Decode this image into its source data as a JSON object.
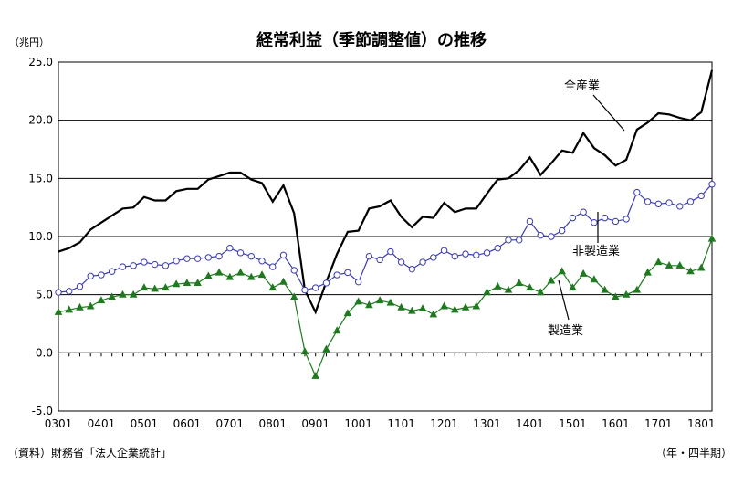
{
  "chart_data": {
    "type": "line",
    "title": "経常利益（季節調整値）の推移",
    "yunit": "（兆円）",
    "xunit": "（年・四半期）",
    "source": "（資料）財務省「法人企業統計」",
    "ylim": [
      -5.0,
      25.0
    ],
    "yticks": [
      "25.0",
      "20.0",
      "15.0",
      "10.0",
      "5.0",
      "0.0",
      "-5.0"
    ],
    "ytick_values": [
      25,
      20,
      15,
      10,
      5,
      0,
      -5
    ],
    "xtick_labels": [
      "0301",
      "0401",
      "0501",
      "0601",
      "0701",
      "0801",
      "0901",
      "1001",
      "1101",
      "1201",
      "1301",
      "1401",
      "1501",
      "1601",
      "1701",
      "1801"
    ],
    "grid": true,
    "colors": {
      "all": "#000000",
      "nonmfg": "#3b3bb0",
      "mfg": "#1f7a1f",
      "axis": "#000000"
    },
    "series": [
      {
        "key": "all",
        "name": "全産業",
        "marker": "none",
        "values": [
          8.7,
          9.0,
          9.5,
          10.6,
          11.2,
          11.8,
          12.4,
          12.5,
          13.4,
          13.1,
          13.1,
          13.9,
          14.1,
          14.1,
          14.9,
          15.2,
          15.5,
          15.5,
          14.9,
          14.6,
          13.0,
          14.4,
          12.0,
          5.4,
          3.5,
          6.1,
          8.5,
          10.4,
          10.5,
          12.4,
          12.6,
          13.1,
          11.7,
          10.8,
          11.7,
          11.6,
          12.9,
          12.1,
          12.4,
          12.4,
          13.7,
          14.9,
          15.0,
          15.7,
          16.8,
          15.3,
          16.3,
          17.4,
          17.2,
          18.9,
          17.6,
          17.0,
          16.1,
          16.6,
          19.2,
          19.8,
          20.6,
          20.5,
          20.2,
          20.0,
          20.7,
          24.3
        ]
      },
      {
        "key": "nonmfg",
        "name": "非製造業",
        "marker": "circle",
        "values": [
          5.2,
          5.3,
          5.7,
          6.6,
          6.7,
          7.0,
          7.4,
          7.5,
          7.8,
          7.6,
          7.5,
          7.9,
          8.1,
          8.1,
          8.2,
          8.3,
          9.0,
          8.6,
          8.3,
          7.9,
          7.4,
          8.4,
          7.1,
          5.4,
          5.6,
          6.0,
          6.7,
          6.9,
          6.1,
          8.3,
          8.0,
          8.7,
          7.8,
          7.2,
          7.8,
          8.2,
          8.8,
          8.3,
          8.5,
          8.4,
          8.6,
          9.0,
          9.7,
          9.7,
          11.3,
          10.1,
          10.0,
          10.5,
          11.6,
          12.1,
          11.2,
          11.6,
          11.3,
          11.5,
          13.8,
          13.0,
          12.8,
          12.9,
          12.6,
          13.0,
          13.5,
          14.5
        ]
      },
      {
        "key": "mfg",
        "name": "製造業",
        "marker": "triangle",
        "values": [
          3.5,
          3.7,
          3.9,
          4.0,
          4.5,
          4.8,
          5.0,
          5.0,
          5.6,
          5.5,
          5.6,
          5.9,
          6.0,
          6.0,
          6.6,
          6.9,
          6.5,
          6.9,
          6.5,
          6.7,
          5.6,
          6.1,
          4.8,
          0.1,
          -2.0,
          0.3,
          1.9,
          3.4,
          4.4,
          4.1,
          4.5,
          4.3,
          3.9,
          3.6,
          3.8,
          3.3,
          4.0,
          3.7,
          3.9,
          4.0,
          5.2,
          5.7,
          5.4,
          6.0,
          5.6,
          5.2,
          6.2,
          7.0,
          5.6,
          6.8,
          6.3,
          5.4,
          4.8,
          5.0,
          5.4,
          6.9,
          7.8,
          7.5,
          7.5,
          7.0,
          7.3,
          9.8
        ]
      }
    ]
  }
}
